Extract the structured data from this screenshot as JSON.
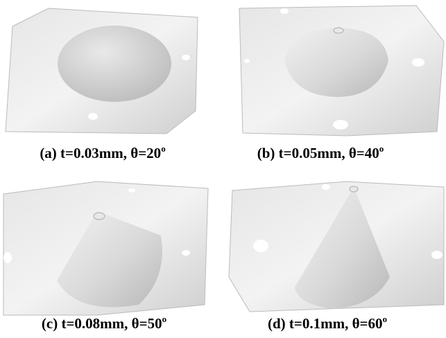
{
  "figure": {
    "panels": [
      {
        "caption": {
          "text": "(a) t=0.03mm, θ=20",
          "superscript": "o"
        }
      },
      {
        "caption": {
          "text": "(b) t=0.05mm, θ=40",
          "superscript": "o"
        }
      },
      {
        "caption": {
          "text": "(c) t=0.08mm, θ=50",
          "superscript": "o"
        }
      },
      {
        "caption": {
          "text": "(d) t=0.1mm, θ=60",
          "superscript": "o"
        }
      }
    ]
  }
}
